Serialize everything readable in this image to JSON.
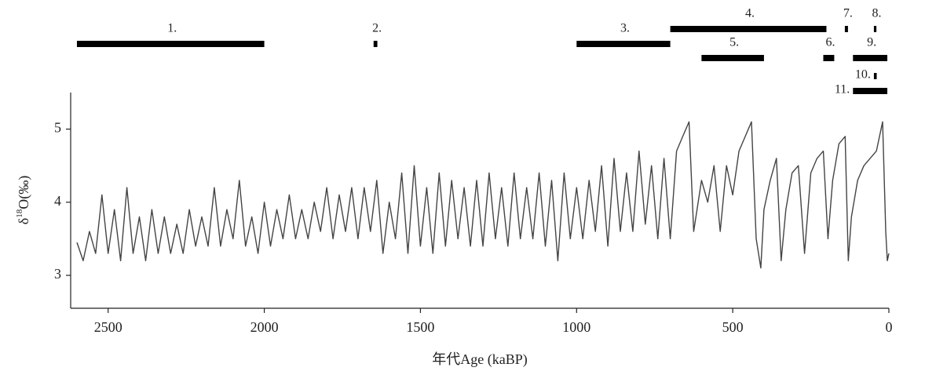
{
  "chart_data": {
    "type": "line",
    "x_label": "年代Age (kaBP)",
    "y_label": {
      "symbol": "δ",
      "superscript": "18",
      "text": "O(‰)"
    },
    "xlim": [
      2620,
      0
    ],
    "xticks": [
      2500,
      2000,
      1500,
      1000,
      500,
      0
    ],
    "ylim": [
      2.55,
      5.5
    ],
    "yticks": [
      3,
      4,
      5
    ],
    "color": "#444444",
    "x": [
      2600,
      2580,
      2560,
      2540,
      2520,
      2500,
      2480,
      2460,
      2440,
      2420,
      2400,
      2380,
      2360,
      2340,
      2320,
      2300,
      2280,
      2260,
      2240,
      2220,
      2200,
      2180,
      2160,
      2140,
      2120,
      2100,
      2080,
      2060,
      2040,
      2020,
      2000,
      1980,
      1960,
      1940,
      1920,
      1900,
      1880,
      1860,
      1840,
      1820,
      1800,
      1780,
      1760,
      1740,
      1720,
      1700,
      1680,
      1660,
      1640,
      1620,
      1600,
      1580,
      1560,
      1540,
      1520,
      1500,
      1480,
      1460,
      1440,
      1420,
      1400,
      1380,
      1360,
      1340,
      1320,
      1300,
      1280,
      1260,
      1240,
      1220,
      1200,
      1180,
      1160,
      1140,
      1120,
      1100,
      1080,
      1060,
      1040,
      1020,
      1000,
      980,
      960,
      940,
      920,
      900,
      880,
      860,
      840,
      820,
      800,
      790,
      780,
      760,
      740,
      720,
      700,
      680,
      660,
      640,
      625,
      600,
      580,
      560,
      540,
      520,
      500,
      480,
      460,
      440,
      425,
      410,
      400,
      380,
      360,
      345,
      330,
      310,
      290,
      270,
      250,
      230,
      210,
      195,
      180,
      160,
      140,
      130,
      120,
      100,
      80,
      60,
      40,
      20,
      10,
      5,
      0
    ],
    "values": [
      3.45,
      3.2,
      3.6,
      3.3,
      4.1,
      3.3,
      3.9,
      3.2,
      4.2,
      3.3,
      3.8,
      3.2,
      3.9,
      3.3,
      3.8,
      3.3,
      3.7,
      3.3,
      3.9,
      3.4,
      3.8,
      3.4,
      4.2,
      3.4,
      3.9,
      3.5,
      4.3,
      3.4,
      3.8,
      3.3,
      4.0,
      3.4,
      3.9,
      3.5,
      4.1,
      3.5,
      3.9,
      3.5,
      4.0,
      3.6,
      4.2,
      3.5,
      4.1,
      3.6,
      4.2,
      3.5,
      4.2,
      3.6,
      4.3,
      3.3,
      4.0,
      3.5,
      4.4,
      3.3,
      4.5,
      3.4,
      4.2,
      3.3,
      4.4,
      3.4,
      4.3,
      3.5,
      4.2,
      3.4,
      4.3,
      3.4,
      4.4,
      3.5,
      4.2,
      3.4,
      4.4,
      3.5,
      4.2,
      3.5,
      4.4,
      3.4,
      4.3,
      3.2,
      4.4,
      3.5,
      4.2,
      3.5,
      4.3,
      3.6,
      4.5,
      3.4,
      4.6,
      3.6,
      4.4,
      3.6,
      4.7,
      4.2,
      3.7,
      4.5,
      3.5,
      4.6,
      3.5,
      4.7,
      4.9,
      5.1,
      3.6,
      4.3,
      4.0,
      4.5,
      3.6,
      4.5,
      4.1,
      4.7,
      4.9,
      5.1,
      3.5,
      3.1,
      3.9,
      4.3,
      4.6,
      3.2,
      3.9,
      4.4,
      4.5,
      3.3,
      4.4,
      4.6,
      4.7,
      3.5,
      4.3,
      4.8,
      4.9,
      3.2,
      3.8,
      4.3,
      4.5,
      4.6,
      4.7,
      5.1,
      3.6,
      3.2,
      3.3
    ],
    "intervals": [
      {
        "label": "1.",
        "start": 2600,
        "end": 2000
      },
      {
        "label": "2.",
        "start": 1650,
        "end": 1638
      },
      {
        "label": "3.",
        "start": 1000,
        "end": 700
      },
      {
        "label": "4.",
        "start": 700,
        "end": 200
      },
      {
        "label": "5.",
        "start": 600,
        "end": 400
      },
      {
        "label": "6.",
        "start": 210,
        "end": 175
      },
      {
        "label": "7.",
        "start": 141,
        "end": 131
      },
      {
        "label": "8.",
        "start": 48,
        "end": 40
      },
      {
        "label": "9.",
        "start": 115,
        "end": 5
      },
      {
        "label": "10.",
        "start": 48,
        "end": 39
      },
      {
        "label": "11.",
        "start": 115,
        "end": 5
      }
    ]
  }
}
